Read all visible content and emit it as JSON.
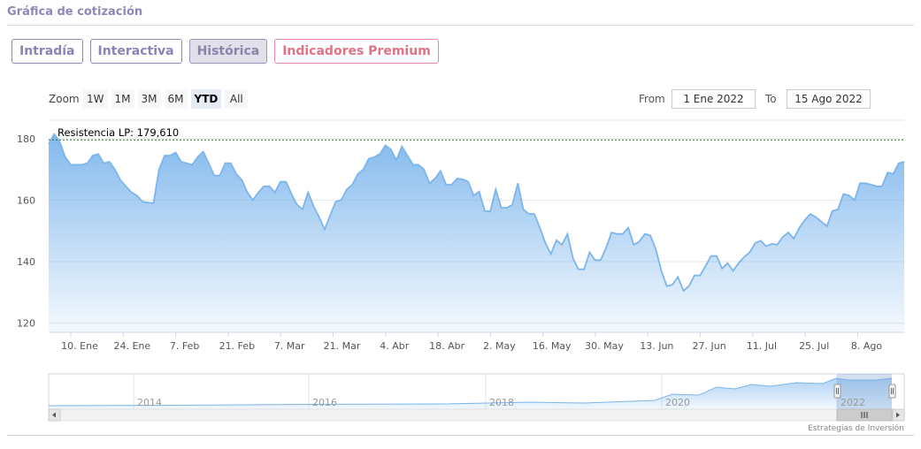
{
  "header": {
    "title": "Gráfica de cotización"
  },
  "tabs": [
    {
      "label": "Intradía",
      "state": "normal"
    },
    {
      "label": "Interactiva",
      "state": "normal"
    },
    {
      "label": "Histórica",
      "state": "active"
    },
    {
      "label": "Indicadores Premium",
      "state": "premium"
    }
  ],
  "zoom": {
    "label": "Zoom",
    "buttons": [
      "1W",
      "1M",
      "3M",
      "6M",
      "YTD",
      "All"
    ],
    "selected": "YTD"
  },
  "range": {
    "from_label": "From",
    "from_value": "1 Ene 2022",
    "to_label": "To",
    "to_value": "15 Ago 2022"
  },
  "colors": {
    "accent": "#9186b8",
    "premium": "#e07288",
    "series_line": "#7cb5ec"
  },
  "chart_data": {
    "type": "area",
    "title": "",
    "xlabel": "",
    "ylabel": "",
    "ylim": [
      117,
      186
    ],
    "yticks": [
      120,
      140,
      160,
      180
    ],
    "grid": true,
    "x_ticks": [
      "10. Ene",
      "24. Ene",
      "7. Feb",
      "21. Feb",
      "7. Mar",
      "21. Mar",
      "4. Abr",
      "18. Abr",
      "2. May",
      "16. May",
      "30. May",
      "13. Jun",
      "27. Jun",
      "11. Jul",
      "25. Jul",
      "8. Ago"
    ],
    "annotation": {
      "label": "Resistencia LP: 179,610",
      "value": 179.61
    },
    "series": [
      {
        "values": [
          178.2,
          181.5,
          179,
          174,
          171.5,
          171.5,
          171.5,
          172,
          174.5,
          175,
          172,
          172.5,
          170,
          166.5,
          164.5,
          162.5,
          161.5,
          159.5,
          159.2,
          159,
          170,
          174.5,
          174.5,
          175.5,
          172.5,
          172,
          171.5,
          174,
          175.8,
          172,
          168,
          168,
          172,
          172,
          168.5,
          166.5,
          162.5,
          160,
          162.5,
          164.5,
          164.5,
          162.5,
          166,
          166,
          162,
          158.5,
          157,
          162.5,
          158,
          154.5,
          150.5,
          155,
          159.5,
          160,
          163.5,
          165,
          168.5,
          170,
          173.5,
          174,
          175,
          177.8,
          176.5,
          173,
          177.5,
          174.5,
          171.5,
          171.5,
          170,
          165.5,
          167,
          169.5,
          165,
          165,
          167,
          166.8,
          166,
          161.5,
          162.8,
          156.5,
          156.3,
          163.5,
          157.5,
          157.5,
          158.5,
          165.5,
          157,
          155.5,
          155.5,
          151,
          146,
          142.5,
          147,
          145.5,
          149,
          141,
          137.5,
          137.5,
          143,
          140.5,
          140.5,
          144.5,
          149.5,
          149,
          149,
          151,
          145.5,
          146.5,
          149,
          148.5,
          144,
          137,
          132,
          132.5,
          135,
          130.5,
          132,
          135.5,
          135.5,
          138.5,
          141.8,
          141.8,
          137.8,
          139.5,
          137,
          139.5,
          141.5,
          143,
          146,
          146.8,
          145,
          145.8,
          145.5,
          148,
          149.5,
          147.5,
          151,
          153.5,
          155.5,
          154.5,
          153,
          151.5,
          156.5,
          157,
          162,
          161.5,
          160,
          165.5,
          165.5,
          165,
          164.5,
          164.5,
          169,
          168.5,
          172,
          172.5
        ]
      }
    ],
    "navigator": {
      "x_ticks": [
        "2014",
        "2016",
        "2018",
        "2020",
        "2022"
      ]
    },
    "credit": "Estrategias de Inversión"
  }
}
